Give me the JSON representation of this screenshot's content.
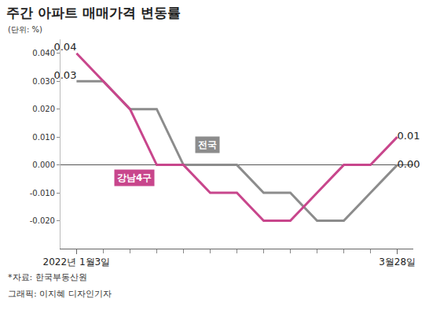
{
  "chart_data": {
    "type": "line",
    "title": "주간 아파트 매매가격 변동률",
    "subtitle": "(단위: %)",
    "source": "*자료: 한국부동산원",
    "credit": "그래픽: 이지혜 디자인기자",
    "categories": [
      "2022년 1월3일",
      null,
      null,
      null,
      null,
      null,
      null,
      null,
      null,
      null,
      null,
      null,
      "3월28일"
    ],
    "series": [
      {
        "name": "전국",
        "color": "#8c8c8c",
        "values": [
          0.03,
          0.03,
          0.02,
          0.02,
          0.0,
          0.0,
          0.0,
          -0.01,
          -0.01,
          -0.02,
          -0.02,
          -0.01,
          0.0
        ],
        "value_labels": [
          "0.03",
          null,
          null,
          null,
          null,
          null,
          null,
          null,
          null,
          null,
          null,
          null,
          "0.00"
        ]
      },
      {
        "name": "강남4구",
        "color": "#c8468c",
        "values": [
          0.04,
          0.03,
          0.02,
          0.0,
          0.0,
          -0.01,
          -0.01,
          -0.02,
          -0.02,
          -0.01,
          0.0,
          0.0,
          0.01
        ],
        "value_labels": [
          "0.04",
          null,
          null,
          null,
          null,
          null,
          null,
          null,
          null,
          null,
          null,
          null,
          "0.01"
        ]
      }
    ],
    "ylim": [
      -0.03,
      0.045
    ],
    "yticks": [
      {
        "value": 0.04,
        "label": "0.040"
      },
      {
        "value": 0.03,
        "label": "0.030"
      },
      {
        "value": 0.02,
        "label": "0.020"
      },
      {
        "value": 0.01,
        "label": "0.010"
      },
      {
        "value": 0,
        "label": "0.000"
      },
      {
        "value": -0.01,
        "label": "-0.010"
      },
      {
        "value": -0.02,
        "label": "-0.020"
      }
    ],
    "grid": false
  }
}
